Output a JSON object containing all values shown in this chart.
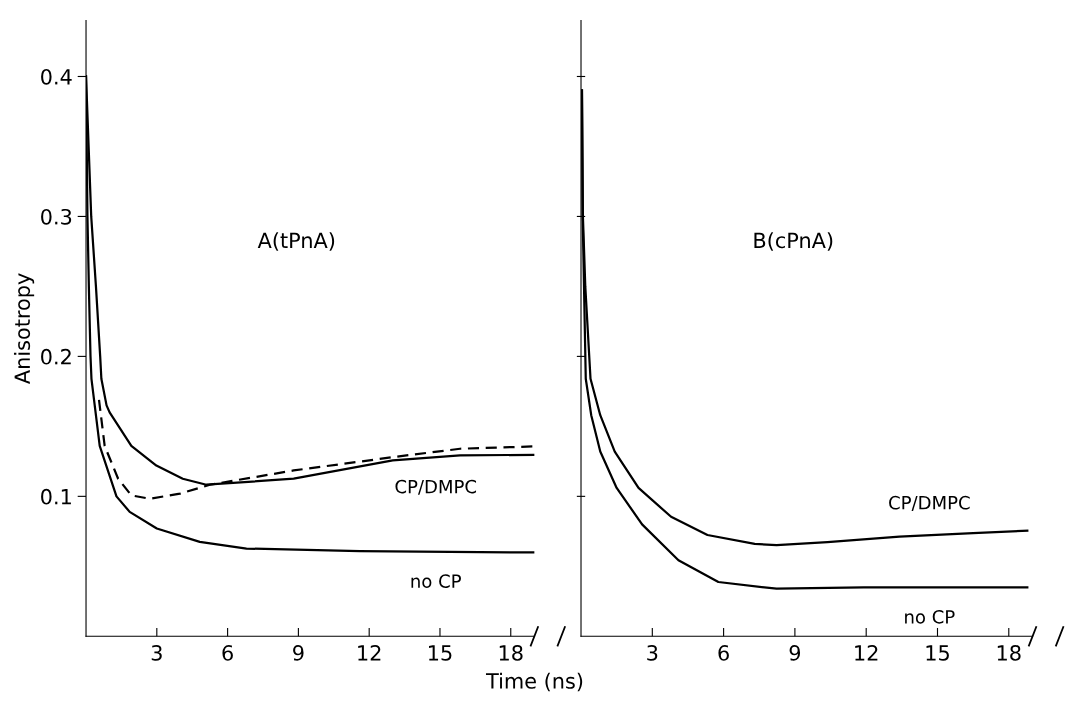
{
  "chart_data": [
    {
      "type": "line",
      "title": "A(tPnA)",
      "ylabel": "Anisotropy",
      "xlim": [
        0,
        19
      ],
      "ylim": [
        0,
        0.44
      ],
      "xticks": [
        3,
        6,
        9,
        12,
        15,
        18
      ],
      "yticks": [
        0.1,
        0.2,
        0.3,
        0.4
      ],
      "grid": false,
      "legend": false,
      "marker": "none",
      "series": [
        {
          "name": "no CP",
          "color": "#000000",
          "line_style": "solid",
          "x": [
            0,
            0.06,
            0.12,
            0.19,
            0.23,
            0.58,
            1.29,
            1.85,
            3.0,
            4.82,
            6.8,
            11.6,
            19
          ],
          "values": [
            0.4,
            0.3,
            0.25,
            0.2,
            0.184,
            0.136,
            0.1,
            0.0889,
            0.077,
            0.0675,
            0.0627,
            0.0608,
            0.0599
          ]
        },
        {
          "name": "CP/DMPC",
          "color": "#000000",
          "line_style": "solid",
          "x": [
            0,
            0.22,
            0.42,
            0.6,
            0.65,
            0.87,
            1.0,
            1.92,
            2.98,
            4.1,
            5.1,
            8.8,
            13.0,
            15.85,
            19
          ],
          "values": [
            0.4,
            0.3,
            0.25,
            0.2,
            0.184,
            0.165,
            0.16,
            0.136,
            0.122,
            0.1126,
            0.1083,
            0.1126,
            0.1257,
            0.1292,
            0.1297
          ]
        },
        {
          "color": "#000000",
          "line_style": "dashed",
          "x": [
            0.55,
            0.79,
            1.36,
            1.92,
            2.7,
            3.98,
            5.25,
            8.8,
            13.0,
            15.85,
            19
          ],
          "values": [
            0.169,
            0.136,
            0.1126,
            0.1007,
            0.0983,
            0.1019,
            0.1083,
            0.1185,
            0.128,
            0.134,
            0.1357
          ]
        }
      ]
    },
    {
      "type": "line",
      "title": "B(cPnA)",
      "xlabel": "Time (ns)",
      "xlim": [
        0,
        19
      ],
      "ylim": [
        0,
        0.44
      ],
      "xticks": [
        3,
        6,
        9,
        12,
        15,
        18
      ],
      "yticks": [
        0.1,
        0.2,
        0.3,
        0.4
      ],
      "tick_labels": "x",
      "grid": false,
      "legend": false,
      "marker": "none",
      "series": [
        {
          "name": "CP/DMPC",
          "color": "#000000",
          "line_style": "solid",
          "x": [
            0.04,
            0.08,
            0.18,
            0.4,
            0.81,
            1.42,
            2.42,
            3.79,
            5.32,
            7.31,
            8.23,
            10.37,
            13.4,
            16.5,
            18.78
          ],
          "values": [
            0.39,
            0.3,
            0.25,
            0.184,
            0.158,
            0.132,
            0.106,
            0.0854,
            0.0724,
            0.066,
            0.0652,
            0.0673,
            0.0712,
            0.0737,
            0.0755
          ]
        },
        {
          "name": "no CP",
          "color": "#000000",
          "line_style": "solid",
          "x": [
            0.04,
            0.07,
            0.2,
            0.43,
            0.81,
            1.5,
            2.57,
            4.1,
            5.78,
            8.23,
            11.9,
            18.78
          ],
          "values": [
            0.39,
            0.3,
            0.184,
            0.158,
            0.132,
            0.106,
            0.08,
            0.0543,
            0.0388,
            0.034,
            0.0349,
            0.0349
          ]
        }
      ]
    }
  ]
}
